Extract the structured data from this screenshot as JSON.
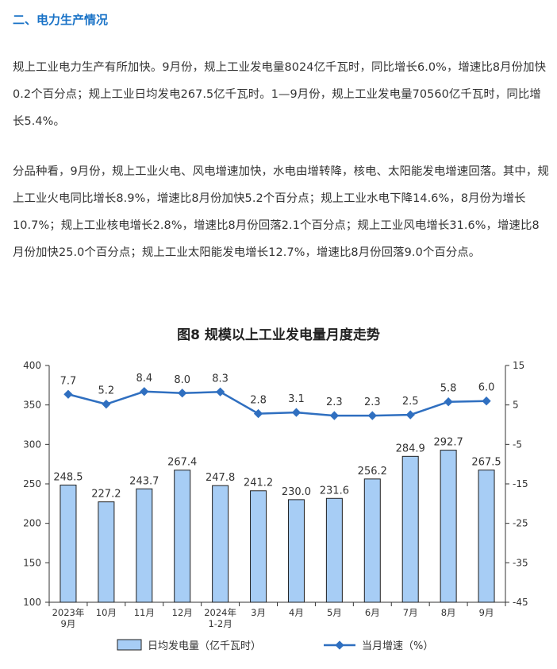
{
  "section": {
    "title": "二、电力生产情况"
  },
  "paragraphs": [
    "规上工业电力生产有所加快。9月份，规上工业发电量8024亿千瓦时，同比增长6.0%，增速比8月份加快0.2个百分点；规上工业日均发电267.5亿千瓦时。1—9月份，规上工业发电量70560亿千瓦时，同比增长5.4%。",
    "分品种看，9月份，规上工业火电、风电增速加快，水电由增转降，核电、太阳能发电增速回落。其中，规上工业火电同比增长8.9%，增速比8月份加快5.2个百分点；规上工业水电下降14.6%，8月份为增长10.7%；规上工业核电增长2.8%，增速比8月份回落2.1个百分点；规上工业风电增长31.6%，增速比8月份加快25.0个百分点；规上工业太阳能发电增长12.7%，增速比8月份回落9.0个百分点。"
  ],
  "chart_data": {
    "type": "bar",
    "title": "图8  规模以上工业发电量月度走势",
    "categories": [
      [
        "2023年",
        "9月"
      ],
      [
        "10月"
      ],
      [
        "11月"
      ],
      [
        "12月"
      ],
      [
        "2024年",
        "1-2月"
      ],
      [
        "3月"
      ],
      [
        "4月"
      ],
      [
        "5月"
      ],
      [
        "6月"
      ],
      [
        "7月"
      ],
      [
        "8月"
      ],
      [
        "9月"
      ]
    ],
    "series": [
      {
        "name": "日均发电量（亿千瓦时）",
        "type": "bar",
        "axis": "left",
        "values": [
          248.5,
          227.2,
          243.7,
          267.4,
          247.8,
          241.2,
          230.0,
          231.6,
          256.2,
          284.9,
          292.7,
          267.5
        ],
        "labels": [
          "248.5",
          "227.2",
          "243.7",
          "267.4",
          "247.8",
          "241.2",
          "230.0",
          "231.6",
          "256.2",
          "284.9",
          "292.7",
          "267.5"
        ],
        "color": "#a7cdf5"
      },
      {
        "name": "当月增速（%）",
        "type": "line",
        "axis": "right",
        "values": [
          7.7,
          5.2,
          8.4,
          8.0,
          8.3,
          2.8,
          3.1,
          2.3,
          2.3,
          2.5,
          5.8,
          6.0
        ],
        "labels": [
          "7.7",
          "5.2",
          "8.4",
          "8.0",
          "8.3",
          "2.8",
          "3.1",
          "2.3",
          "2.3",
          "2.5",
          "5.8",
          "6.0"
        ],
        "color": "#2f6fc0"
      }
    ],
    "y_left": {
      "min": 100,
      "max": 400,
      "ticks": [
        "100",
        "150",
        "200",
        "250",
        "300",
        "350",
        "400"
      ]
    },
    "y_right": {
      "min": -45,
      "max": 15,
      "ticks": [
        "-45",
        "-35",
        "-25",
        "-15",
        "-5",
        "5",
        "15"
      ]
    },
    "grid": false,
    "legend_position": "bottom",
    "colors": {
      "bar_fill": "#a7cdf5",
      "bar_stroke": "#1f1f1f",
      "line": "#2f6fc0",
      "axis": "#333333"
    }
  }
}
